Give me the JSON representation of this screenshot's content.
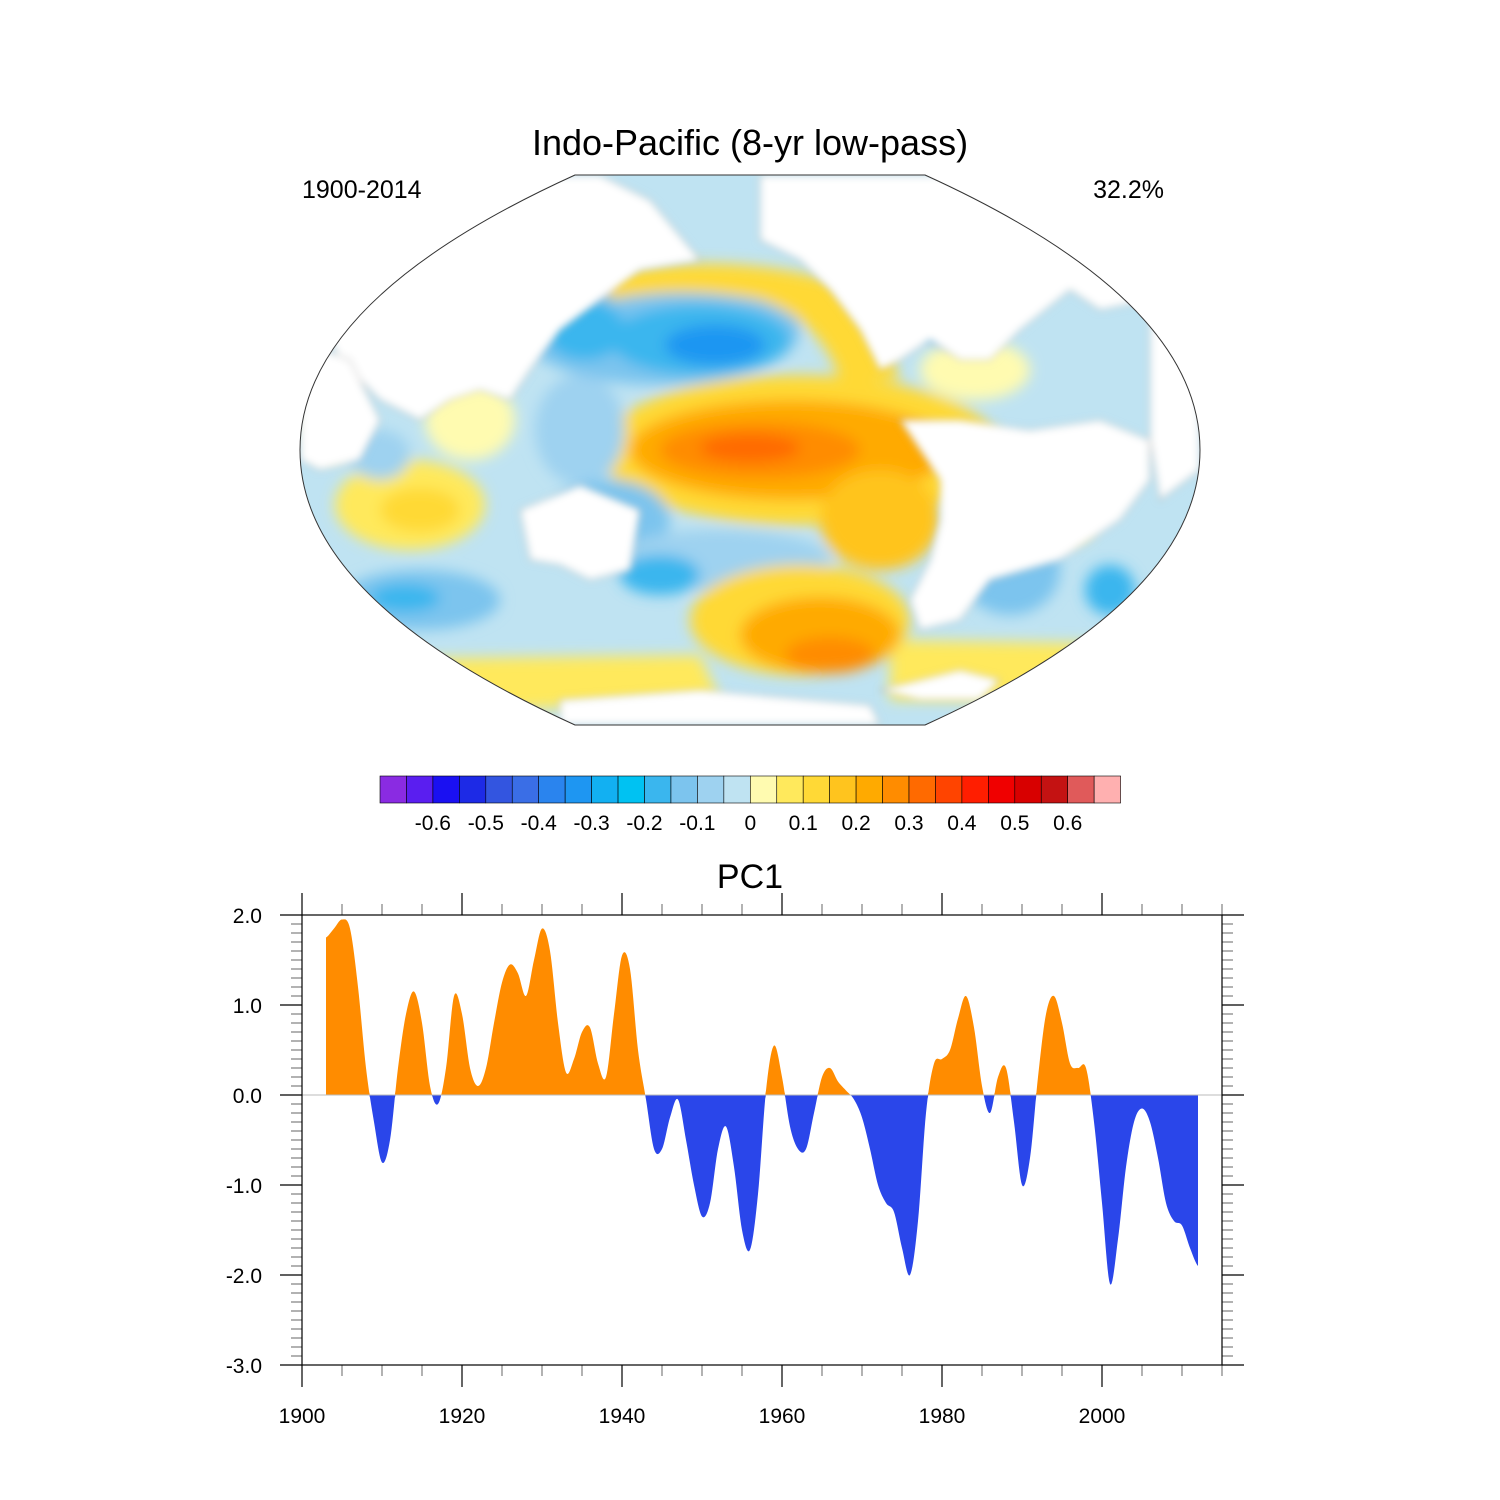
{
  "map": {
    "title": "Indo-Pacific (8-yr low-pass)",
    "left_label": "1900-2014",
    "right_label": "32.2%"
  },
  "colorbar": {
    "colors": [
      "#8a2be2",
      "#5a1ef0",
      "#1a10f2",
      "#1d2ae6",
      "#3355e0",
      "#3a6ee6",
      "#2a84ee",
      "#1e96f2",
      "#12b0f2",
      "#00c2f2",
      "#3ab6ee",
      "#7cc4ee",
      "#9ed2f0",
      "#bfe3f2",
      "#fffbb0",
      "#ffe95c",
      "#ffd936",
      "#ffc41e",
      "#ffaa00",
      "#ff8c00",
      "#ff6a00",
      "#ff4400",
      "#ff1e00",
      "#f00000",
      "#d80000",
      "#c41212",
      "#e05a5a",
      "#ffb0b0"
    ],
    "tick_labels": [
      "-0.6",
      "-0.5",
      "-0.4",
      "-0.3",
      "-0.2",
      "-0.1",
      "0",
      "0.1",
      "0.2",
      "0.3",
      "0.4",
      "0.5",
      "0.6"
    ]
  },
  "chart_data": {
    "type": "area",
    "title": "PC1",
    "xlabel": "",
    "ylabel": "",
    "xlim": [
      1900,
      2015
    ],
    "ylim": [
      -3.0,
      2.0
    ],
    "x_ticks": [
      1900,
      1920,
      1940,
      1960,
      1980,
      2000
    ],
    "y_ticks": [
      "2.0",
      "1.0",
      "0.0",
      "-1.0",
      "-2.0",
      "-3.0"
    ],
    "y_tick_values": [
      2.0,
      1.0,
      0.0,
      -1.0,
      -2.0,
      -3.0
    ],
    "positive_color": "#ff8c00",
    "negative_color": "#2a46ea",
    "grid": false,
    "x": [
      1903,
      1904,
      1905,
      1906,
      1907,
      1908,
      1909,
      1910,
      1911,
      1912,
      1913,
      1914,
      1915,
      1916,
      1917,
      1918,
      1919,
      1920,
      1921,
      1922,
      1923,
      1924,
      1925,
      1926,
      1927,
      1928,
      1929,
      1930,
      1931,
      1932,
      1933,
      1934,
      1935,
      1936,
      1937,
      1938,
      1939,
      1940,
      1941,
      1942,
      1943,
      1944,
      1945,
      1946,
      1947,
      1948,
      1949,
      1950,
      1951,
      1952,
      1953,
      1954,
      1955,
      1956,
      1957,
      1958,
      1959,
      1960,
      1961,
      1962,
      1963,
      1964,
      1965,
      1966,
      1967,
      1968,
      1969,
      1970,
      1971,
      1972,
      1973,
      1974,
      1975,
      1976,
      1977,
      1978,
      1979,
      1980,
      1981,
      1982,
      1983,
      1984,
      1985,
      1986,
      1987,
      1988,
      1989,
      1990,
      1991,
      1992,
      1993,
      1994,
      1995,
      1996,
      1997,
      1998,
      1999,
      2000,
      2001,
      2002,
      2003,
      2004,
      2005,
      2006,
      2007,
      2008,
      2009,
      2010,
      2011,
      2012
    ],
    "values": [
      1.75,
      1.85,
      1.95,
      1.85,
      1.2,
      0.3,
      -0.3,
      -0.75,
      -0.5,
      0.3,
      0.9,
      1.15,
      0.8,
      0.1,
      -0.1,
      0.3,
      1.1,
      0.9,
      0.3,
      0.1,
      0.3,
      0.8,
      1.25,
      1.45,
      1.35,
      1.1,
      1.5,
      1.85,
      1.6,
      0.8,
      0.25,
      0.4,
      0.7,
      0.75,
      0.35,
      0.2,
      0.9,
      1.55,
      1.4,
      0.5,
      -0.05,
      -0.6,
      -0.6,
      -0.25,
      -0.05,
      -0.5,
      -1.0,
      -1.35,
      -1.2,
      -0.6,
      -0.35,
      -0.8,
      -1.5,
      -1.72,
      -1.1,
      0.05,
      0.55,
      0.2,
      -0.35,
      -0.6,
      -0.6,
      -0.2,
      0.2,
      0.3,
      0.15,
      0.05,
      -0.05,
      -0.25,
      -0.6,
      -1.0,
      -1.2,
      -1.3,
      -1.7,
      -2.0,
      -1.4,
      -0.2,
      0.35,
      0.4,
      0.5,
      0.85,
      1.1,
      0.75,
      0.1,
      -0.2,
      0.2,
      0.3,
      -0.3,
      -1.0,
      -0.7,
      0.2,
      0.9,
      1.1,
      0.8,
      0.35,
      0.3,
      0.3,
      -0.3,
      -1.2,
      -2.1,
      -1.6,
      -0.8,
      -0.3,
      -0.15,
      -0.3,
      -0.7,
      -1.2,
      -1.4,
      -1.45,
      -1.7,
      -1.9
    ]
  }
}
